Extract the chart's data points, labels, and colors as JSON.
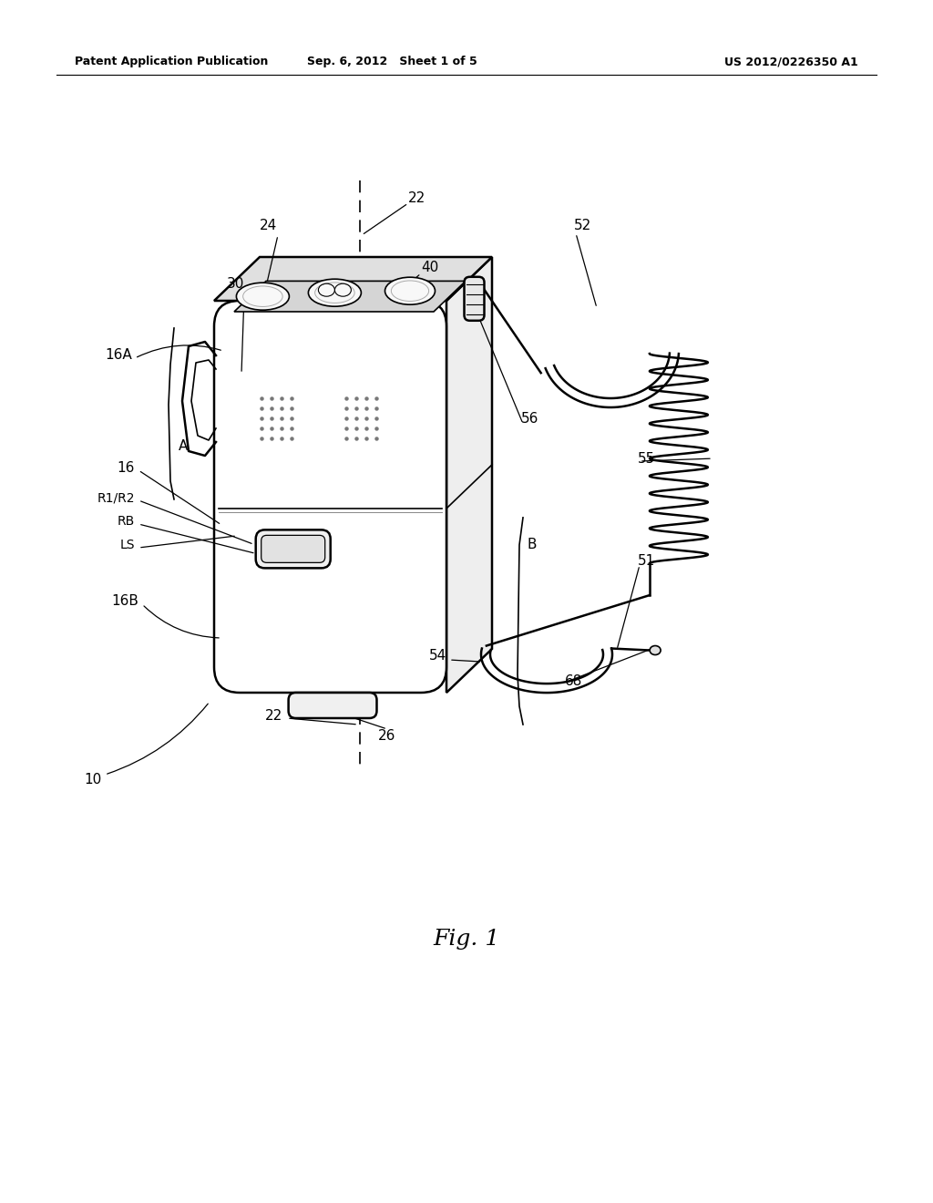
{
  "bg_color": "#ffffff",
  "header_left": "Patent Application Publication",
  "header_mid": "Sep. 6, 2012   Sheet 1 of 5",
  "header_right": "US 2012/0226350 A1",
  "figure_label": "Fig. 1"
}
